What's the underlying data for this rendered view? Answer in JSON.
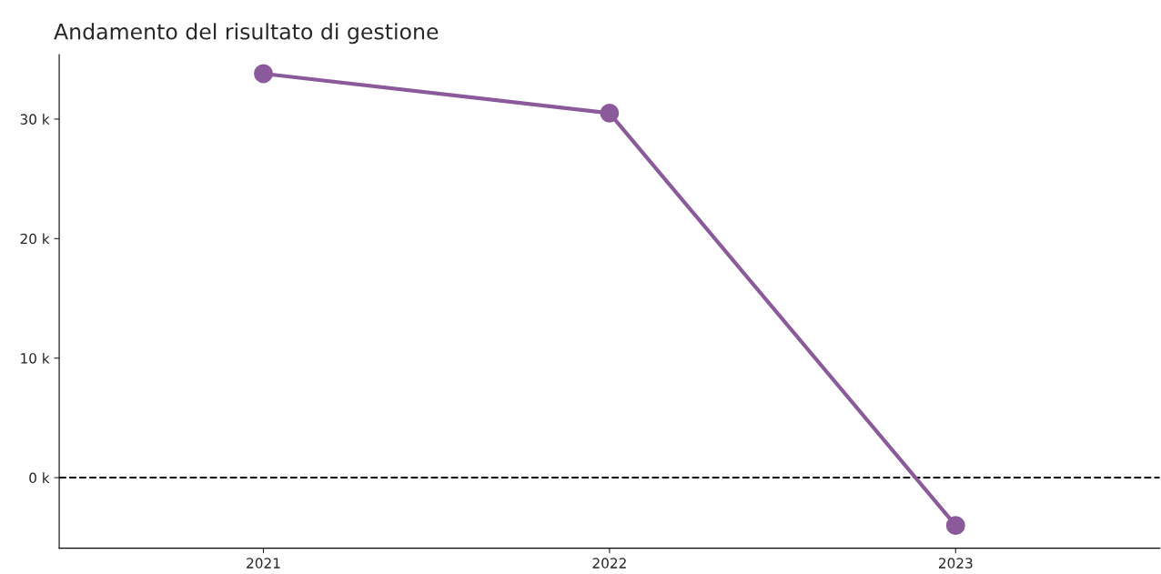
{
  "chart_data": {
    "type": "line",
    "title": "Andamento del risultato di gestione",
    "x": [
      2021,
      2022,
      2023
    ],
    "series": [
      {
        "color": "#8b5a9b",
        "values": [
          33800,
          30500,
          -4000
        ]
      }
    ],
    "xlim": [
      2020.41,
      2023.59
    ],
    "xticks": [
      2021,
      2022,
      2023
    ],
    "ylim": [
      -5900,
      35400
    ],
    "yticks": [
      {
        "value": 0,
        "label": "0 k"
      },
      {
        "value": 10000,
        "label": "10 k"
      },
      {
        "value": 20000,
        "label": "20 k"
      },
      {
        "value": 30000,
        "label": "30 k"
      }
    ],
    "ref_lines": [
      {
        "axis": "y",
        "value": 0,
        "color": "#000000",
        "line_style": "dashed"
      }
    ],
    "marker": "circle",
    "line_style": "solid",
    "grid": false,
    "legend": false
  }
}
